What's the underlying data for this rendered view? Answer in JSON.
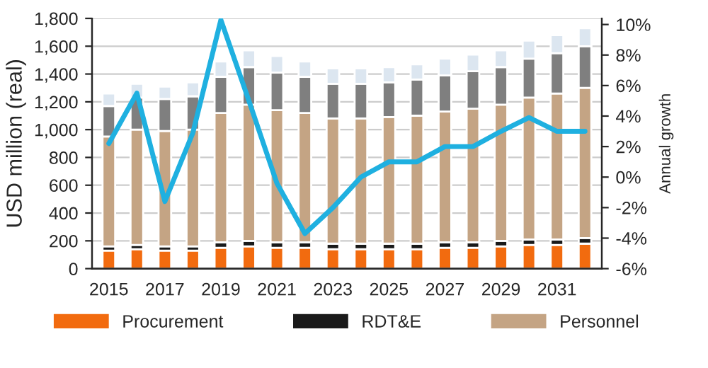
{
  "chart_data": {
    "type": "bar",
    "stacked": true,
    "categories": [
      "2015",
      null,
      "2017",
      null,
      "2019",
      null,
      "2021",
      null,
      "2023",
      null,
      "2025",
      null,
      "2027",
      null,
      "2029",
      null,
      "2031",
      null
    ],
    "ylabel": "USD million (real)",
    "y2label": "Annual growth",
    "ylim": [
      0,
      1800
    ],
    "yticks": [
      {
        "value": 0,
        "label": "0"
      },
      {
        "value": 200,
        "label": "200"
      },
      {
        "value": 400,
        "label": "400"
      },
      {
        "value": 600,
        "label": "600"
      },
      {
        "value": 800,
        "label": "800"
      },
      {
        "value": 1000,
        "label": "1,000"
      },
      {
        "value": 1200,
        "label": "1,200"
      },
      {
        "value": 1400,
        "label": "1,400"
      },
      {
        "value": 1600,
        "label": "1,600"
      },
      {
        "value": 1800,
        "label": "1,800"
      }
    ],
    "y2lim": [
      -6,
      10.4
    ],
    "y2ticks": [
      {
        "value": -6,
        "label": "-6%"
      },
      {
        "value": -4,
        "label": "-4%"
      },
      {
        "value": -2,
        "label": "-2%"
      },
      {
        "value": 0,
        "label": "0%"
      },
      {
        "value": 2,
        "label": "2%"
      },
      {
        "value": 4,
        "label": "4%"
      },
      {
        "value": 6,
        "label": "6%"
      },
      {
        "value": 8,
        "label": "8%"
      },
      {
        "value": 10,
        "label": "10%"
      }
    ],
    "grid": "y",
    "legend": "bottom",
    "series": [
      {
        "name": "Procurement",
        "color": "#f26b0f",
        "values": [
          130,
          140,
          130,
          130,
          150,
          160,
          150,
          150,
          140,
          140,
          140,
          140,
          150,
          150,
          160,
          170,
          170,
          180
        ]
      },
      {
        "name": "RDT&E",
        "color": "#1a1a1a",
        "values": [
          30,
          30,
          30,
          30,
          40,
          40,
          40,
          40,
          40,
          40,
          40,
          40,
          40,
          40,
          40,
          40,
          40,
          40
        ]
      },
      {
        "name": "Personnel",
        "color": "#c4a484",
        "values": [
          790,
          830,
          830,
          840,
          930,
          980,
          950,
          930,
          900,
          900,
          910,
          920,
          940,
          960,
          980,
          1020,
          1050,
          1080
        ]
      },
      {
        "color": "#7f7f7f",
        "values": [
          220,
          230,
          230,
          240,
          260,
          270,
          270,
          260,
          250,
          250,
          250,
          260,
          260,
          270,
          270,
          280,
          290,
          300
        ]
      },
      {
        "color": "#dce6f0",
        "values": [
          90,
          100,
          90,
          100,
          110,
          120,
          120,
          110,
          110,
          110,
          110,
          110,
          120,
          120,
          120,
          130,
          130,
          130
        ]
      },
      {
        "type": "line",
        "axis": "y2",
        "color": "#1fb0e0",
        "values": [
          2.2,
          5.5,
          -1.6,
          2.9,
          10.3,
          5.0,
          -0.4,
          -3.7,
          -2.0,
          0,
          1,
          1,
          2,
          2,
          3,
          3.9,
          3,
          3
        ]
      }
    ]
  }
}
